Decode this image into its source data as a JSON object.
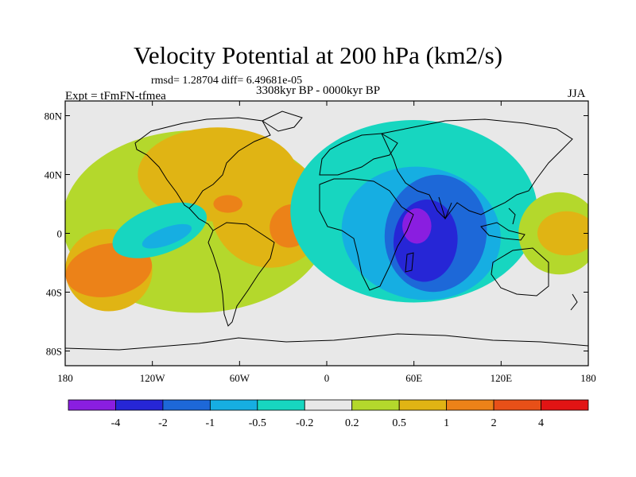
{
  "title": "Velocity Potential at 200 hPa (km2/s)",
  "stats_line": "rmsd= 1.28704  diff= 6.49681e-05",
  "experiment": "Expt = tFmFN-tfmea",
  "period": "3308kyr BP - 0000kyr BP",
  "season": "JJA",
  "axes": {
    "x_ticks": [
      {
        "lon": -180,
        "label": "180"
      },
      {
        "lon": -120,
        "label": "120W"
      },
      {
        "lon": -60,
        "label": "60W"
      },
      {
        "lon": 0,
        "label": "0"
      },
      {
        "lon": 60,
        "label": "60E"
      },
      {
        "lon": 120,
        "label": "120E"
      },
      {
        "lon": 180,
        "label": "180"
      }
    ],
    "y_ticks": [
      {
        "lat": 80,
        "label": "80N"
      },
      {
        "lat": 40,
        "label": "40N"
      },
      {
        "lat": 0,
        "label": "0"
      },
      {
        "lat": -40,
        "label": "40S"
      },
      {
        "lat": -80,
        "label": "80S"
      }
    ],
    "xlim": [
      -180,
      180
    ],
    "ylim": [
      -90,
      90
    ]
  },
  "colorbar": {
    "colors": [
      "#8a1ee0",
      "#2626d6",
      "#1d68d8",
      "#16aee2",
      "#17d6c0",
      "#e8e8e8",
      "#b4d82c",
      "#e0b414",
      "#ec8218",
      "#e85018",
      "#e21414"
    ],
    "labels": [
      "-4",
      "-2",
      "-1",
      "-0.5",
      "-0.2",
      "0.2",
      "0.5",
      "1",
      "2",
      "4"
    ]
  },
  "regions": [
    {
      "name": "positive-west-hemisphere",
      "level": 1,
      "lon": -90,
      "lat": 8,
      "rx": 92,
      "ry": 62,
      "rot": 0
    },
    {
      "name": "positive-north-america",
      "level": 2,
      "lon": -75,
      "lat": 40,
      "rx": 55,
      "ry": 32,
      "rot": 0
    },
    {
      "name": "positive-atlantic",
      "level": 2,
      "lon": -40,
      "lat": 15,
      "rx": 40,
      "ry": 38,
      "rot": 30
    },
    {
      "name": "positive-south-pacific",
      "level": 2,
      "lon": -150,
      "lat": -25,
      "rx": 30,
      "ry": 28,
      "rot": 0
    },
    {
      "name": "strong-positive-atlantic",
      "level": 3,
      "lon": -25,
      "lat": 5,
      "rx": 14,
      "ry": 15,
      "rot": 30
    },
    {
      "name": "strong-positive-south-pacific",
      "level": 3,
      "lon": -150,
      "lat": -25,
      "rx": 30,
      "ry": 18,
      "rot": -10
    },
    {
      "name": "strong-positive-caribbean",
      "level": 3,
      "lon": -68,
      "lat": 20,
      "rx": 10,
      "ry": 6,
      "rot": 0
    },
    {
      "name": "negative-east-pacific",
      "level": -1,
      "lon": -115,
      "lat": 2,
      "rx": 34,
      "ry": 16,
      "rot": -20
    },
    {
      "name": "negative-east-pacific-core",
      "level": -2,
      "lon": -110,
      "lat": -2,
      "rx": 18,
      "ry": 6,
      "rot": -20
    },
    {
      "name": "negative-eastern-hemisphere",
      "level": -1,
      "lon": 60,
      "lat": 15,
      "rx": 85,
      "ry": 62,
      "rot": 0
    },
    {
      "name": "negative-indian-ocean",
      "level": -2,
      "lon": 65,
      "lat": 0,
      "rx": 55,
      "ry": 45,
      "rot": 10
    },
    {
      "name": "negative-indian-ocean-core",
      "level": -3,
      "lon": 75,
      "lat": 0,
      "rx": 35,
      "ry": 40,
      "rot": 10
    },
    {
      "name": "negative-indian-ocean-center",
      "level": -4,
      "lon": 68,
      "lat": -5,
      "rx": 22,
      "ry": 28,
      "rot": 5
    },
    {
      "name": "minimum-arabian-sea",
      "level": -5,
      "lon": 62,
      "lat": 5,
      "rx": 10,
      "ry": 12,
      "rot": 0
    },
    {
      "name": "positive-west-pacific",
      "level": 1,
      "lon": 160,
      "lat": 0,
      "rx": 28,
      "ry": 28,
      "rot": 0
    },
    {
      "name": "positive-west-pacific-core",
      "level": 2,
      "lon": 165,
      "lat": 0,
      "rx": 20,
      "ry": 15,
      "rot": 0
    }
  ]
}
